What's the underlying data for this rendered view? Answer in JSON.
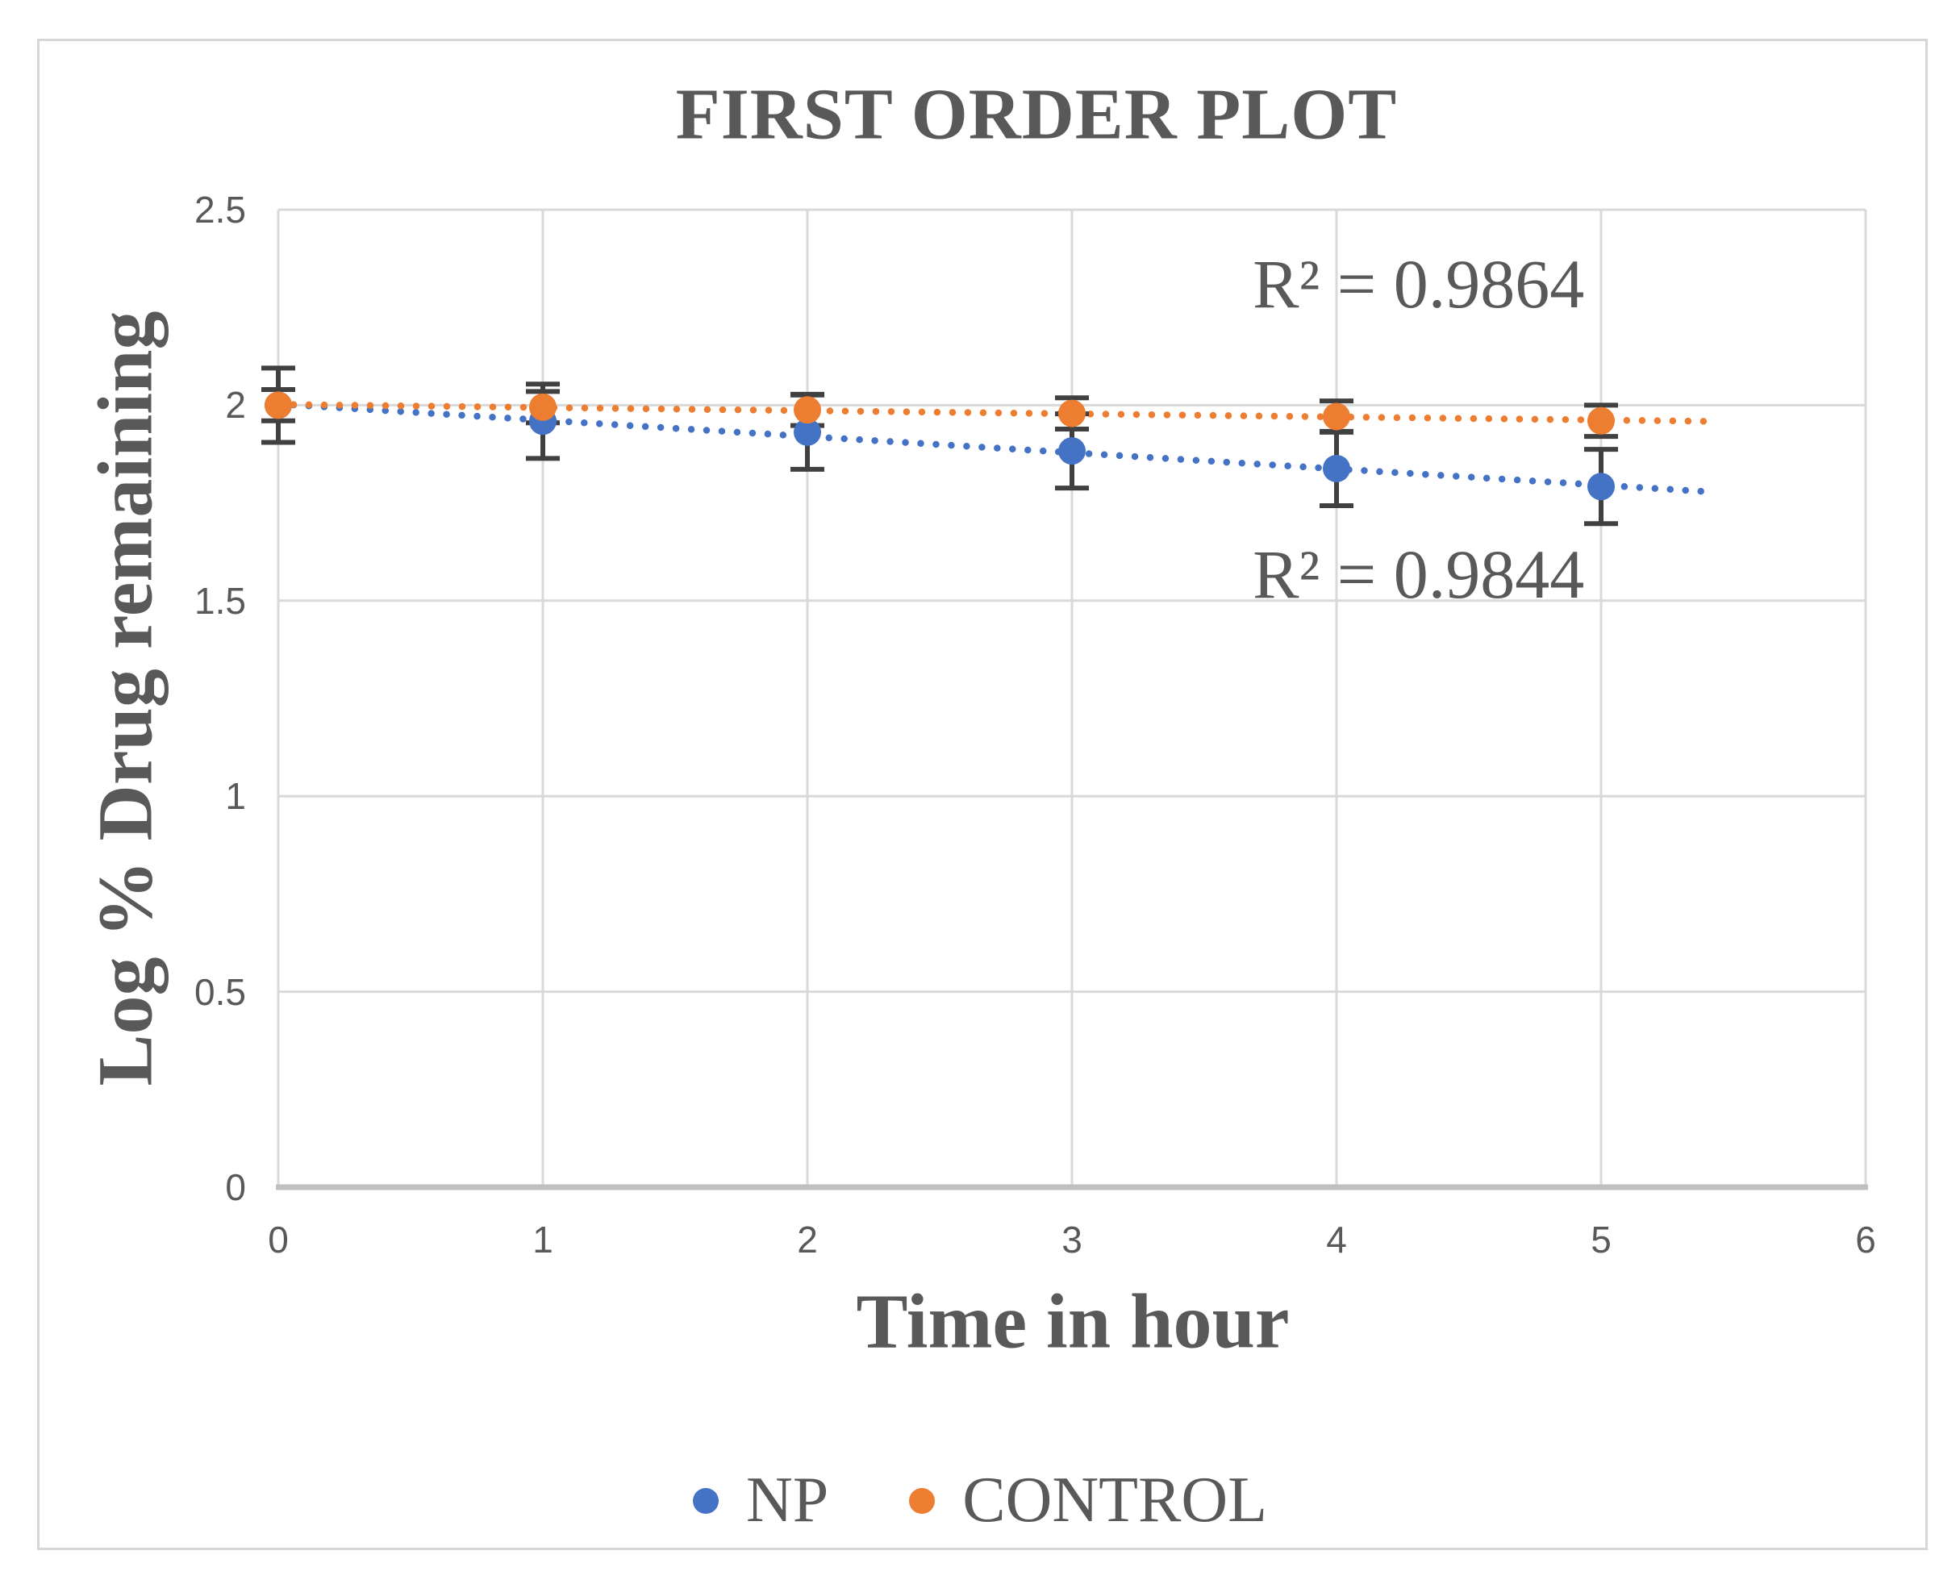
{
  "figure": {
    "kind": "excel-style scatter chart with linear dotted trendlines and error bars"
  },
  "chart_data": {
    "type": "scatter",
    "title": "FIRST ORDER PLOT",
    "xlabel": "Time in hour",
    "ylabel": "Log % Drug remaining",
    "x": [
      0,
      1,
      2,
      3,
      4,
      5
    ],
    "series": [
      {
        "name": "NP",
        "color": "#4472C4",
        "values": [
          2.0,
          1.959,
          1.931,
          1.883,
          1.838,
          1.792
        ],
        "error_bar": 0.095,
        "trendline": {
          "style": "dotted",
          "intercept": 2.003,
          "slope": -0.0415,
          "r_squared": 0.9844
        }
      },
      {
        "name": "CONTROL",
        "color": "#ED7D31",
        "values": [
          2.0,
          1.995,
          1.988,
          1.979,
          1.971,
          1.96
        ],
        "error_bar": 0.04,
        "trendline": {
          "style": "dotted",
          "intercept": 2.002,
          "slope": -0.008,
          "r_squared": 0.9864
        }
      }
    ],
    "xlim": [
      0,
      6
    ],
    "ylim": [
      0,
      2.5
    ],
    "x_ticks": [
      "0",
      "1",
      "2",
      "3",
      "4",
      "5",
      "6"
    ],
    "y_ticks": [
      "0",
      "0.5",
      "1",
      "1.5",
      "2",
      "2.5"
    ],
    "grid": true,
    "legend_position": "bottom",
    "annotations": [
      {
        "text": "R² = 0.9864",
        "series": "CONTROL",
        "x": 4.31,
        "y": 2.31
      },
      {
        "text": "R² = 0.9844",
        "series": "NP",
        "x": 4.31,
        "y": 1.567
      }
    ],
    "colors": {
      "grid": "#d9d9d9",
      "axis_line": "#bfbfbf",
      "error_bar": "#404040",
      "text": "#595959"
    }
  }
}
